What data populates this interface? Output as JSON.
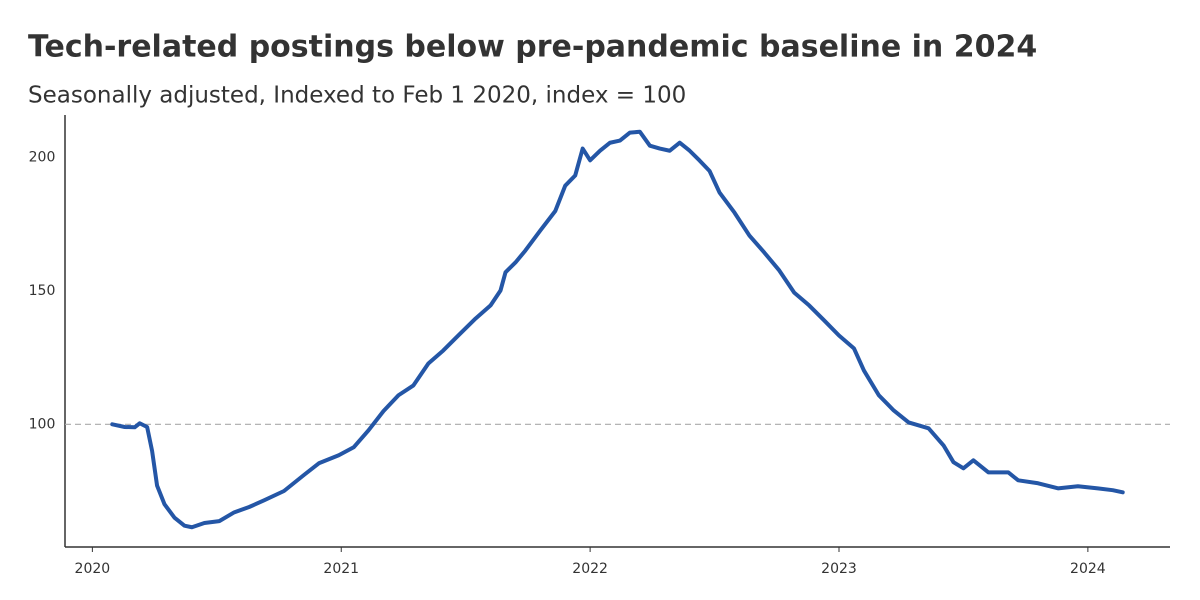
{
  "chart_data": {
    "type": "line",
    "title": "Tech-related postings below pre-pandemic baseline in 2024",
    "subtitle": "Seasonally adjusted, Indexed to Feb 1 2020, index = 100",
    "x": [
      2020.08,
      2020.13,
      2020.17,
      2020.19,
      2020.22,
      2020.24,
      2020.26,
      2020.29,
      2020.33,
      2020.37,
      2020.4,
      2020.45,
      2020.51,
      2020.57,
      2020.63,
      2020.69,
      2020.77,
      2020.85,
      2020.91,
      2020.99,
      2021.05,
      2021.11,
      2021.17,
      2021.23,
      2021.29,
      2021.35,
      2021.41,
      2021.47,
      2021.54,
      2021.6,
      2021.64,
      2021.66,
      2021.7,
      2021.74,
      2021.8,
      2021.86,
      2021.9,
      2021.94,
      2021.97,
      2022.0,
      2022.04,
      2022.08,
      2022.12,
      2022.16,
      2022.2,
      2022.24,
      2022.28,
      2022.32,
      2022.36,
      2022.4,
      2022.44,
      2022.48,
      2022.52,
      2022.58,
      2022.64,
      2022.7,
      2022.76,
      2022.82,
      2022.88,
      2022.94,
      2023.0,
      2023.06,
      2023.1,
      2023.16,
      2023.22,
      2023.28,
      2023.36,
      2023.42,
      2023.46,
      2023.5,
      2023.54,
      2023.6,
      2023.68,
      2023.72,
      2023.8,
      2023.88,
      2023.96,
      2024.04,
      2024.1,
      2024.14
    ],
    "series": [
      {
        "name": "Tech-related postings",
        "color": "#2456a6",
        "values": [
          100,
          99,
          98.9,
          100.4,
          99,
          90,
          77,
          70,
          65,
          62,
          61.4,
          63,
          63.7,
          67,
          69,
          71.5,
          75,
          81,
          85.4,
          88.4,
          91.4,
          97.8,
          105,
          110.9,
          114.6,
          122.8,
          127.7,
          133.3,
          139.7,
          144.6,
          150.2,
          157,
          160.7,
          165.2,
          172.7,
          180,
          189.5,
          193.3,
          203.4,
          199,
          202.6,
          205.6,
          206.4,
          209.4,
          209.7,
          204.5,
          203.4,
          202.6,
          205.6,
          202.6,
          198.9,
          195,
          186.9,
          179.4,
          170.8,
          164.4,
          157.7,
          149.4,
          144.6,
          139,
          133.3,
          128.5,
          120.2,
          110.9,
          105.2,
          100.7,
          98.5,
          92.1,
          85.8,
          83.5,
          86.5,
          82,
          82,
          79,
          77.9,
          76,
          76.8,
          76,
          75.3,
          74.5
        ]
      }
    ],
    "xlim": [
      2019.89,
      2024.33
    ],
    "xticks": [
      2020,
      2021,
      2022,
      2023,
      2024
    ],
    "ylim": [
      54,
      216
    ],
    "yticks": [
      100,
      150,
      200
    ],
    "reference_line": 100
  }
}
